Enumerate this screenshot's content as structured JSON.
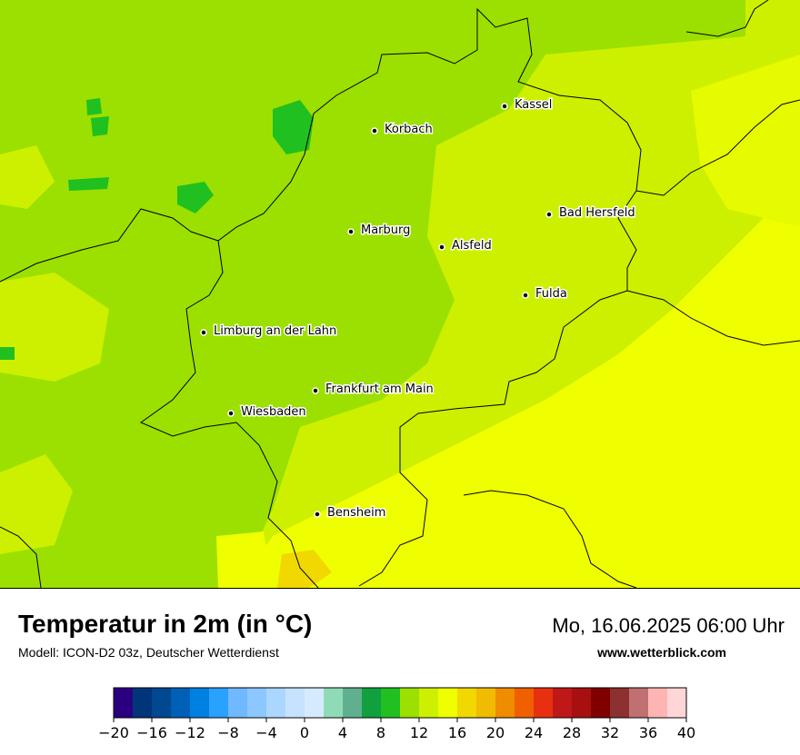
{
  "title": "Temperatur in 2m (in °C)",
  "subtitle": "Modell: ICON-D2 03z, Deutscher Wetterdienst",
  "datetime": "Mo, 16.06.2025 06:00 Uhr",
  "website": "www.wetterblick.com",
  "cities": [
    {
      "name": "Kassel"
    },
    {
      "name": "Korbach"
    },
    {
      "name": "Bad Hersfeld"
    },
    {
      "name": "Marburg"
    },
    {
      "name": "Alsfeld"
    },
    {
      "name": "Fulda"
    },
    {
      "name": "Limburg an der Lahn"
    },
    {
      "name": "Frankfurt am Main"
    },
    {
      "name": "Wiesbaden"
    },
    {
      "name": "Bensheim"
    }
  ],
  "legend": {
    "min": -20,
    "max": 40,
    "step": 2,
    "ticks": [
      "−20",
      "−16",
      "−12",
      "−8",
      "−4",
      "0",
      "4",
      "8",
      "12",
      "16",
      "20",
      "24",
      "28",
      "32",
      "36",
      "40"
    ],
    "colors": [
      "#2a0080",
      "#00357a",
      "#00488f",
      "#0060b8",
      "#0080e0",
      "#2aa0ff",
      "#70b8ff",
      "#8cc8ff",
      "#aad6ff",
      "#c6e2ff",
      "#d6eaff",
      "#8fdbb8",
      "#60b090",
      "#10a040",
      "#20c020",
      "#9be000",
      "#ccf000",
      "#f0ff00",
      "#f0d800",
      "#f0bb00",
      "#f08c00",
      "#f06000",
      "#e83010",
      "#c01818",
      "#a81010",
      "#800000",
      "#8c3030",
      "#c07070",
      "#ffb4b4",
      "#ffd6d6"
    ]
  }
}
